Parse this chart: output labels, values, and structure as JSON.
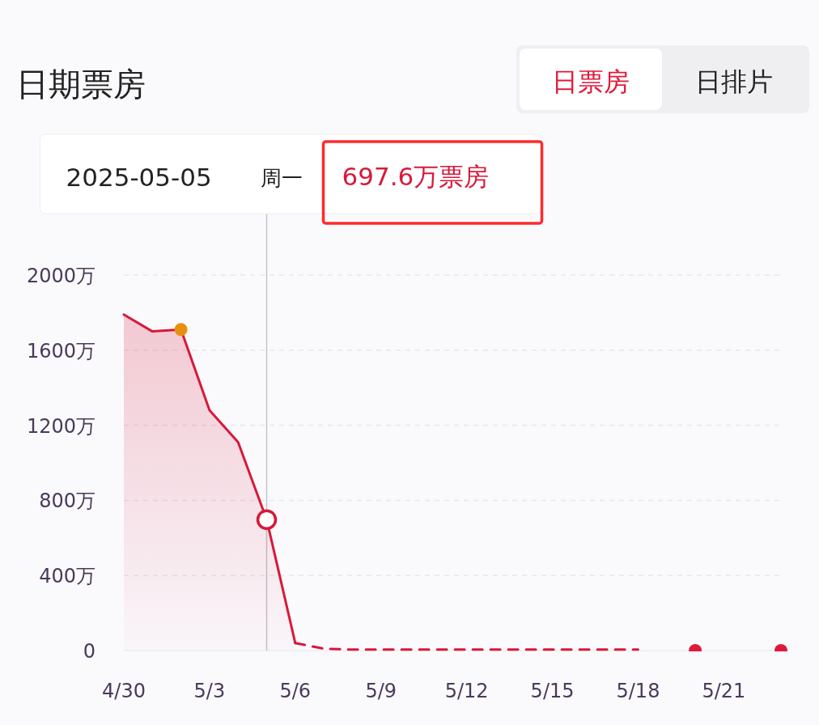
{
  "chart_data": {
    "type": "line",
    "title": "日期票房",
    "annotations": [
      "日票房",
      "日排片",
      "2025-05-05",
      "周一",
      "697.6万票房"
    ],
    "xlim": [
      "2025-04-30",
      "2025-05-23"
    ],
    "xticks": [
      {
        "value": "2025-04-30",
        "label": "4/30"
      },
      {
        "value": "2025-05-03",
        "label": "5/3"
      },
      {
        "value": "2025-05-06",
        "label": "5/6"
      },
      {
        "value": "2025-05-09",
        "label": "5/9"
      },
      {
        "value": "2025-05-12",
        "label": "5/12"
      },
      {
        "value": "2025-05-15",
        "label": "5/15"
      },
      {
        "value": "2025-05-18",
        "label": "5/18"
      },
      {
        "value": "2025-05-21",
        "label": "5/21"
      }
    ],
    "ylim": [
      0,
      2000
    ],
    "yticks": [
      0,
      {
        "value": 400,
        "label": "400万"
      },
      {
        "value": 800,
        "label": "800万"
      },
      {
        "value": 1200,
        "label": "1200万"
      },
      {
        "value": 1600,
        "label": "1600万"
      },
      {
        "value": 2000,
        "label": "2000万"
      }
    ],
    "grid": "y",
    "ref_lines": [
      {
        "axis": "x",
        "value": "2025-05-05",
        "color": "#c3c3cc"
      }
    ],
    "series": [
      {
        "type": "area",
        "color": "#d7193a",
        "line_style": "solid",
        "x": [
          "2025-04-30",
          "2025-05-01",
          "2025-05-02",
          "2025-05-03",
          "2025-05-04",
          "2025-05-05",
          "2025-05-06"
        ],
        "values": [
          1790,
          1700,
          1710,
          1280,
          1110,
          697.6,
          40
        ]
      },
      {
        "type": "line",
        "color": "#d7193a",
        "line_style": "dashed",
        "x": [
          "2025-05-06",
          "2025-05-07",
          "2025-05-08",
          "2025-05-09",
          "2025-05-10",
          "2025-05-11",
          "2025-05-12",
          "2025-05-13",
          "2025-05-14",
          "2025-05-15",
          "2025-05-16",
          "2025-05-17",
          "2025-05-18"
        ],
        "values": [
          40,
          10,
          5,
          5,
          5,
          5,
          5,
          5,
          5,
          5,
          5,
          5,
          5
        ]
      },
      {
        "type": "scatter",
        "color": "#e0193a",
        "marker": "circle",
        "x": [
          "2025-05-20",
          "2025-05-23"
        ],
        "values": [
          0,
          0
        ]
      },
      {
        "type": "scatter",
        "color": "#e8900c",
        "marker": "circle",
        "x": [
          "2025-05-02"
        ],
        "values": [
          1710
        ]
      },
      {
        "type": "scatter",
        "color": "#d7193a",
        "marker": "circle",
        "x": [
          "2025-05-05"
        ],
        "values": [
          697.6
        ]
      }
    ]
  }
}
